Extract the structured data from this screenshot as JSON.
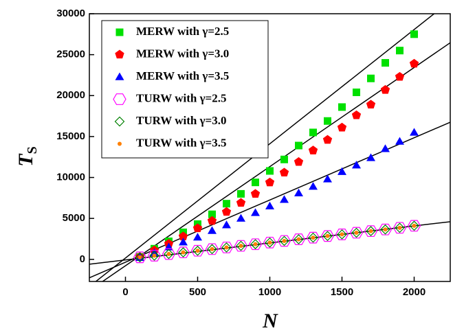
{
  "chart_data": {
    "type": "scatter",
    "x_label": "N",
    "y_label": "T",
    "y_label_sub": "S",
    "xlim": [
      -250,
      2250
    ],
    "ylim": [
      -2700,
      30000
    ],
    "xticks": [
      0,
      500,
      1000,
      1500,
      2000
    ],
    "yticks": [
      0,
      5000,
      10000,
      15000,
      20000,
      25000,
      30000
    ],
    "x": [
      100,
      200,
      300,
      400,
      500,
      600,
      700,
      800,
      900,
      1000,
      1100,
      1200,
      1300,
      1400,
      1500,
      1600,
      1700,
      1800,
      1900,
      2000
    ],
    "series": [
      {
        "name": "MERW with γ=2.5",
        "color": "#00e000",
        "marker": "square",
        "values": [
          300,
          1300,
          2200,
          3300,
          4300,
          5500,
          6800,
          8000,
          9400,
          10800,
          12200,
          13900,
          15500,
          16900,
          18600,
          20400,
          22100,
          24000,
          25500,
          27500
        ]
      },
      {
        "name": "MERW with γ=3.0",
        "color": "#ff0000",
        "marker": "pentagon",
        "values": [
          300,
          1100,
          1900,
          2800,
          3800,
          4700,
          5800,
          6900,
          8000,
          9400,
          10600,
          11900,
          13300,
          14600,
          16100,
          17600,
          18900,
          20700,
          22300,
          23900
        ]
      },
      {
        "name": "MERW with γ=3.5",
        "color": "#0000ff",
        "marker": "triangle",
        "values": [
          200,
          800,
          1500,
          2100,
          2700,
          3500,
          4200,
          5000,
          5700,
          6500,
          7300,
          8100,
          8900,
          9800,
          10700,
          11500,
          12400,
          13500,
          14400,
          15500
        ]
      },
      {
        "name": "TURW with γ=2.5",
        "color": "#ff00ff",
        "marker": "hexagon",
        "values": [
          250,
          450,
          650,
          850,
          1050,
          1250,
          1450,
          1650,
          1850,
          2050,
          2250,
          2450,
          2650,
          2850,
          3050,
          3250,
          3450,
          3650,
          3850,
          4100
        ]
      },
      {
        "name": "TURW with γ=3.0",
        "color": "#008000",
        "marker": "diamond",
        "values": [
          250,
          450,
          650,
          850,
          1050,
          1250,
          1450,
          1650,
          1850,
          2050,
          2250,
          2450,
          2650,
          2850,
          3050,
          3250,
          3450,
          3650,
          3850,
          4100
        ]
      },
      {
        "name": "TURW with γ=3.5",
        "color": "#ff8000",
        "marker": "dot",
        "values": [
          250,
          450,
          650,
          850,
          1050,
          1250,
          1450,
          1650,
          1850,
          2050,
          2250,
          2450,
          2650,
          2850,
          3050,
          3250,
          3450,
          3650,
          3850,
          4100
        ]
      }
    ],
    "fits": [
      {
        "x": [
          -250,
          2250
        ],
        "values": [
          -3330,
          31560
        ]
      },
      {
        "x": [
          -250,
          2250
        ],
        "values": [
          -3810,
          26460
        ]
      },
      {
        "x": [
          -250,
          2250
        ],
        "values": [
          -2250,
          16750
        ]
      },
      {
        "x": [
          -250,
          2250
        ],
        "values": [
          -590,
          4600
        ]
      }
    ]
  }
}
